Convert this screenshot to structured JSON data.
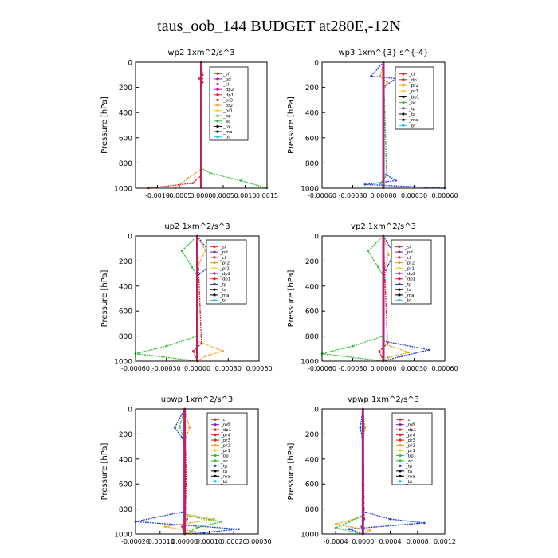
{
  "title": "taus_oob_144  BUDGET at280E,-12N",
  "y_axis_label": "Pressure [hPa]",
  "colors": {
    "_sf": "#e0201c",
    "_pd": "#7a1fa0",
    "_cl": "#e0201c",
    "_dp2": "#cc00cc",
    "_dp1": "#e0201c",
    "_pr3": "#e0201c",
    "_pr2": "#f0a020",
    "_pr1": "#f5d020",
    "_bp": "#30c030",
    "_ac": "#30c030",
    "_tp": "#1f3fd0",
    "_ta": "#000000",
    "_ma": "#000000",
    "_bt": "#20c0e0",
    "_mfl": "#7a1fa0",
    "_pr4": "#e0201c"
  },
  "chart_data": [
    {
      "type": "line",
      "title": "wp2   1xm^2/s^3",
      "ylabel": "Pressure [hPa]",
      "ylim": [
        1000,
        0
      ],
      "xlim": [
        -0.0015,
        0.0015
      ],
      "xticks": [
        "-0.0010",
        "-0.0005",
        "0.0000",
        "0.0005",
        "0.0010",
        "0.0015"
      ],
      "yticks": [
        "0",
        "200",
        "400",
        "600",
        "800",
        "1000"
      ],
      "legend": [
        "_sf",
        "_pd",
        "_cl",
        "_dp2",
        "_dp1",
        "_pr3",
        "_pr2",
        "_pr1",
        "_bp",
        "_ac",
        "_ta",
        "_ma",
        "_bt"
      ],
      "series": [
        {
          "name": "_ac",
          "x": [
            0,
            0,
            0.0002,
            0.0009,
            0.0015
          ],
          "y": [
            0,
            840,
            880,
            940,
            1000
          ]
        },
        {
          "name": "_pr2",
          "x": [
            0,
            0,
            -0.0003,
            -0.0006
          ],
          "y": [
            0,
            850,
            920,
            1000
          ]
        },
        {
          "name": "_dp1",
          "x": [
            0,
            0,
            -0.0002,
            -0.0012
          ],
          "y": [
            0,
            900,
            960,
            1000
          ]
        },
        {
          "name": "_cl",
          "x": [
            0,
            3e-05,
            -5e-05,
            3e-05,
            0
          ],
          "y": [
            0,
            100,
            130,
            160,
            200
          ]
        },
        {
          "name": "_tp",
          "x": [
            0,
            2e-05,
            0
          ],
          "y": [
            0,
            130,
            200
          ]
        }
      ]
    },
    {
      "type": "line",
      "title": "wp3   1xm^{3} s^{-4}",
      "ylabel": "Pressure [hPa]",
      "ylim": [
        1000,
        0
      ],
      "xlim": [
        -0.0006,
        0.0006
      ],
      "xticks": [
        "-0.00060",
        "-0.00030",
        "0.00000",
        "0.00030",
        "0.00060"
      ],
      "yticks": [
        "0",
        "200",
        "400",
        "600",
        "800",
        "1000"
      ],
      "legend": [
        "_cl",
        "_dp1",
        "_pr2",
        "_pr1",
        "_bp1",
        "_ac",
        "_tp",
        "_ta",
        "_ma",
        "_bt"
      ],
      "series": [
        {
          "name": "_tp",
          "x": [
            0,
            -0.00012,
            0.00012,
            0,
            0,
            0.00012,
            -0.00018,
            0.0006
          ],
          "y": [
            0,
            110,
            130,
            200,
            880,
            940,
            970,
            1000
          ]
        },
        {
          "name": "_pr2",
          "x": [
            0,
            -3e-05,
            4e-05,
            0
          ],
          "y": [
            0,
            110,
            160,
            220
          ]
        },
        {
          "name": "_ac",
          "x": [
            0,
            3e-05,
            -3e-05,
            0
          ],
          "y": [
            0,
            900,
            960,
            1000
          ]
        }
      ]
    },
    {
      "type": "line",
      "title": "up2   1xm^2/s^3",
      "ylabel": "Pressure [hPa]",
      "ylim": [
        1000,
        0
      ],
      "xlim": [
        -0.0006,
        0.0006
      ],
      "xticks": [
        "-0.00060",
        "-0.00030",
        "0.00000",
        "0.00030",
        "0.00060"
      ],
      "yticks": [
        "0",
        "200",
        "400",
        "600",
        "800",
        "1000"
      ],
      "legend": [
        "_sf",
        "_pd",
        "_cl",
        "_pr2",
        "_pr1",
        "_dp2",
        "_dp1",
        "_tp",
        "_ta",
        "_ma",
        "_bt"
      ],
      "series": [
        {
          "name": "_ac",
          "x": [
            0,
            -0.00015,
            -5e-05,
            0,
            0,
            -0.0003,
            -0.0006,
            0
          ],
          "y": [
            0,
            120,
            250,
            320,
            800,
            880,
            940,
            1000
          ]
        },
        {
          "name": "_pr2",
          "x": [
            0,
            8e-05,
            0,
            0,
            0.00025,
            8e-05,
            0
          ],
          "y": [
            0,
            120,
            250,
            840,
            920,
            960,
            1000
          ]
        },
        {
          "name": "_tp",
          "x": [
            0,
            0.0001,
            0.00015,
            0
          ],
          "y": [
            0,
            110,
            220,
            320
          ]
        },
        {
          "name": "_dp1",
          "x": [
            0,
            4e-05,
            -4e-05,
            0
          ],
          "y": [
            0,
            860,
            920,
            1000
          ]
        }
      ]
    },
    {
      "type": "line",
      "title": "vp2   1xm^2/s^3",
      "ylabel": "Pressure [hPa]",
      "ylim": [
        1000,
        0
      ],
      "xlim": [
        -0.0006,
        0.0006
      ],
      "xticks": [
        "-0.00060",
        "-0.00030",
        "0.00000",
        "0.00030",
        "0.00060"
      ],
      "yticks": [
        "0",
        "200",
        "400",
        "600",
        "800",
        "1000"
      ],
      "legend": [
        "_sf",
        "_pd",
        "_cl",
        "_pr2",
        "_pr1",
        "_dp2",
        "_dp1",
        "_tp",
        "_ta",
        "_ma",
        "_bt"
      ],
      "series": [
        {
          "name": "_ac",
          "x": [
            0,
            -0.00015,
            -5e-05,
            0,
            0,
            -0.0003,
            -0.0006,
            0
          ],
          "y": [
            0,
            120,
            250,
            320,
            800,
            880,
            940,
            1000
          ]
        },
        {
          "name": "_tp",
          "x": [
            0,
            0.0001,
            0,
            0,
            0.00045,
            0.00018,
            0
          ],
          "y": [
            0,
            140,
            320,
            840,
            910,
            960,
            1000
          ]
        },
        {
          "name": "_pr2",
          "x": [
            0,
            5e-05,
            0,
            0,
            0.00025,
            5e-05,
            0
          ],
          "y": [
            0,
            150,
            300,
            860,
            930,
            970,
            1000
          ]
        },
        {
          "name": "_dp1",
          "x": [
            0,
            4e-05,
            -4e-05,
            0
          ],
          "y": [
            0,
            860,
            920,
            1000
          ]
        }
      ]
    },
    {
      "type": "line",
      "title": "upwp   1xm^2/s^3",
      "ylabel": "Pressure [hPa]",
      "ylim": [
        1000,
        0
      ],
      "xlim": [
        -0.0002,
        0.0003
      ],
      "xticks": [
        "-0.00020",
        "-0.00010",
        "0.00000",
        "0.00010",
        "0.00020",
        "0.00030"
      ],
      "yticks": [
        "0",
        "200",
        "400",
        "600",
        "800",
        "1000"
      ],
      "legend": [
        "_cl",
        "_mfl",
        "_dp1",
        "_pr4",
        "_pr3",
        "_pr2",
        "_pr1",
        "_bp",
        "_ac",
        "_tp",
        "_ta",
        "_ma",
        "_bt"
      ],
      "series": [
        {
          "name": "_tp",
          "x": [
            0,
            -4e-05,
            -1e-05,
            0,
            0,
            -0.0002,
            0.00022,
            8e-05,
            0
          ],
          "y": [
            0,
            150,
            230,
            300,
            820,
            900,
            960,
            990,
            1000
          ]
        },
        {
          "name": "_pr2",
          "x": [
            0,
            2e-05,
            0,
            0,
            0.00012,
            -8e-05,
            4e-05,
            0
          ],
          "y": [
            0,
            150,
            260,
            840,
            880,
            940,
            980,
            1000
          ]
        },
        {
          "name": "_ac",
          "x": [
            0,
            -2e-05,
            0,
            0,
            0.00015,
            5e-05,
            0
          ],
          "y": [
            0,
            140,
            260,
            850,
            900,
            950,
            1000
          ]
        },
        {
          "name": "_dp1",
          "x": [
            0,
            1e-05,
            -1e-05,
            0
          ],
          "y": [
            0,
            880,
            940,
            1000
          ]
        }
      ]
    },
    {
      "type": "line",
      "title": "vpwp   1xm^2/s^3",
      "ylabel": "Pressure [hPa]",
      "ylim": [
        1000,
        0
      ],
      "xlim": [
        -0.0006,
        0.0012
      ],
      "xticks": [
        "-0.0004",
        "0.0000",
        "0.0004",
        "0.0008",
        "0.0012"
      ],
      "yticks": [
        "0",
        "200",
        "400",
        "600",
        "800",
        "1000"
      ],
      "legend": [
        "_cl",
        "_mfl",
        "_dp1",
        "_pr4",
        "_pr3",
        "_pr2",
        "_pr1",
        "_bp",
        "_ac",
        "_tp",
        "_ta",
        "_ma",
        "_bt"
      ],
      "series": [
        {
          "name": "_tp",
          "x": [
            0,
            -4e-05,
            -1e-05,
            0,
            0,
            0.0004,
            0.0009,
            -0.0002,
            0
          ],
          "y": [
            0,
            150,
            230,
            300,
            820,
            880,
            910,
            960,
            1000
          ]
        },
        {
          "name": "_pr2",
          "x": [
            0,
            3e-05,
            0,
            0,
            -0.0004,
            0.0001,
            0
          ],
          "y": [
            0,
            150,
            260,
            860,
            920,
            970,
            1000
          ]
        },
        {
          "name": "_ac",
          "x": [
            0,
            2e-05,
            0,
            0,
            -0.0002,
            -0.0004,
            0
          ],
          "y": [
            0,
            140,
            260,
            850,
            900,
            950,
            1000
          ]
        },
        {
          "name": "_dp1",
          "x": [
            0,
            2e-05,
            -2e-05,
            0
          ],
          "y": [
            0,
            880,
            940,
            1000
          ]
        }
      ]
    }
  ]
}
